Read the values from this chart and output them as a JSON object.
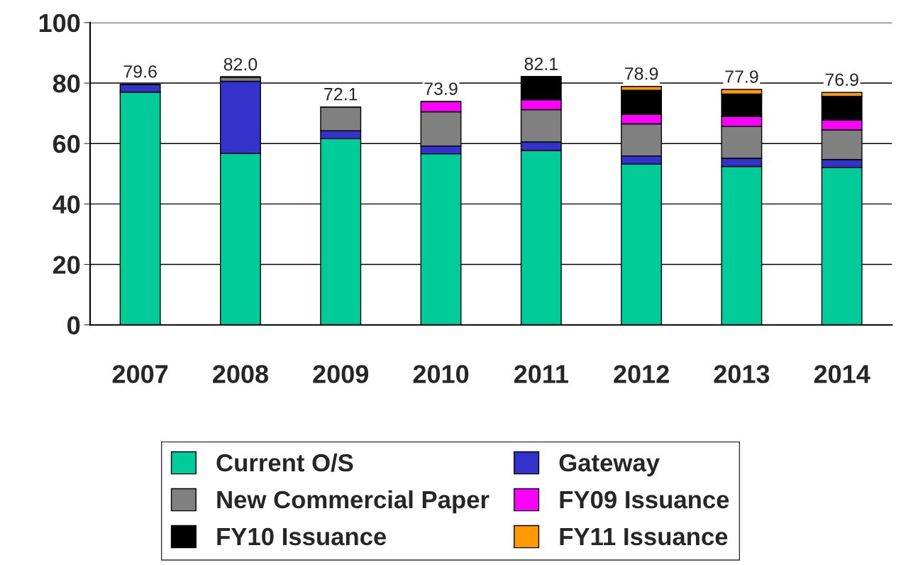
{
  "chart_data": {
    "type": "bar",
    "stacked": true,
    "categories": [
      "2007",
      "2008",
      "2009",
      "2010",
      "2011",
      "2012",
      "2013",
      "2014"
    ],
    "series": [
      {
        "name": "Current O/S",
        "color": "#00cc99",
        "values": [
          77.0,
          56.7,
          61.6,
          56.6,
          57.7,
          53.2,
          52.4,
          52.1
        ]
      },
      {
        "name": "Gateway",
        "color": "#3333cc",
        "values": [
          2.6,
          23.9,
          2.6,
          2.6,
          2.8,
          2.7,
          2.7,
          2.6
        ]
      },
      {
        "name": "New Commercial Paper",
        "color": "#808080",
        "values": [
          null,
          1.4,
          7.9,
          11.3,
          10.7,
          10.6,
          10.6,
          9.8
        ]
      },
      {
        "name": "FY09 Issuance",
        "color": "#ff00ff",
        "values": [
          null,
          null,
          null,
          3.4,
          3.3,
          3.1,
          3.2,
          3.2
        ]
      },
      {
        "name": "FY10 Issuance",
        "color": "#000000",
        "values": [
          null,
          null,
          null,
          null,
          7.6,
          8.0,
          7.5,
          7.9
        ]
      },
      {
        "name": "FY11 Issuance",
        "color": "#ff9900",
        "values": [
          null,
          null,
          null,
          null,
          null,
          1.3,
          1.5,
          1.3
        ]
      }
    ],
    "totals": [
      "79.6",
      "82.0",
      "72.1",
      "73.9",
      "82.1",
      "78.9",
      "77.9",
      "76.9"
    ],
    "ylim": [
      0,
      100
    ],
    "yticks": [
      0,
      20,
      40,
      60,
      80,
      100
    ],
    "grid": "y",
    "legend": "bottom"
  }
}
